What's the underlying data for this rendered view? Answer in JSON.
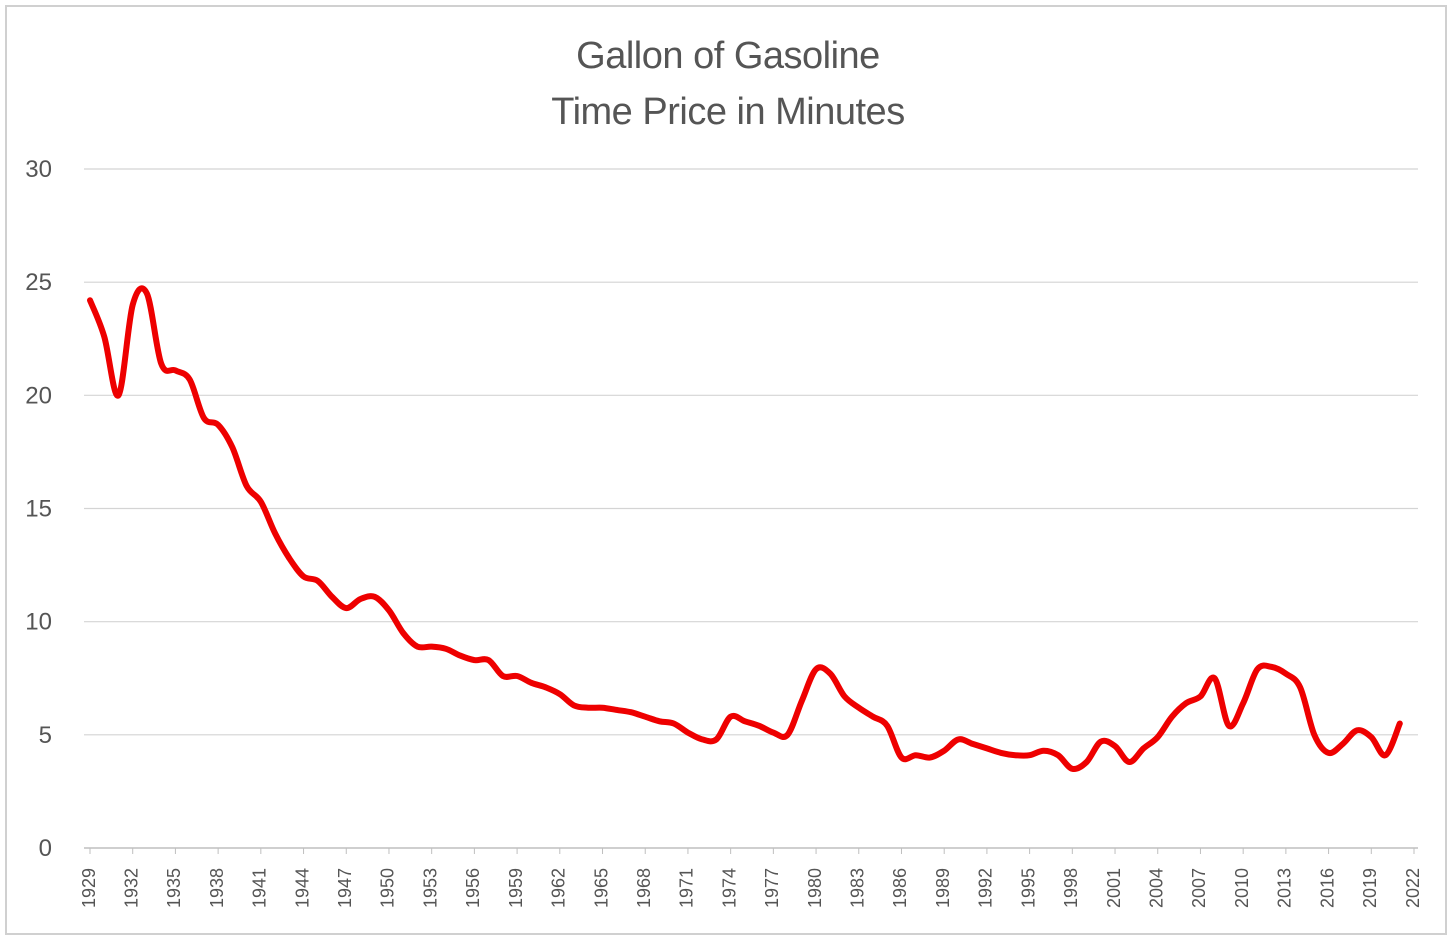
{
  "chart_data": {
    "type": "line",
    "title": "Gallon of Gasoline",
    "subtitle": "Time Price in Minutes",
    "xlabel": "",
    "ylabel": "",
    "ylim": [
      0,
      30
    ],
    "xlim": [
      1929,
      2022
    ],
    "yticks": [
      "0",
      "5",
      "10",
      "15",
      "20",
      "25",
      "30"
    ],
    "xticks": [
      "1929",
      "1932",
      "1935",
      "1938",
      "1941",
      "1944",
      "1947",
      "1950",
      "1953",
      "1956",
      "1959",
      "1962",
      "1965",
      "1968",
      "1971",
      "1974",
      "1977",
      "1980",
      "1983",
      "1986",
      "1989",
      "1992",
      "1995",
      "1998",
      "2001",
      "2004",
      "2007",
      "2010",
      "2013",
      "2016",
      "2019",
      "2022"
    ],
    "grid": "horizontal",
    "legend": "none",
    "series": [
      {
        "color": "#ee0000",
        "x": [
          1929,
          1930,
          1931,
          1932,
          1933,
          1934,
          1935,
          1936,
          1937,
          1938,
          1939,
          1940,
          1941,
          1942,
          1943,
          1944,
          1945,
          1946,
          1947,
          1948,
          1949,
          1950,
          1951,
          1952,
          1953,
          1954,
          1955,
          1956,
          1957,
          1958,
          1959,
          1960,
          1961,
          1962,
          1963,
          1964,
          1965,
          1966,
          1967,
          1968,
          1969,
          1970,
          1971,
          1972,
          1973,
          1974,
          1975,
          1976,
          1977,
          1978,
          1979,
          1980,
          1981,
          1982,
          1983,
          1984,
          1985,
          1986,
          1987,
          1988,
          1989,
          1990,
          1991,
          1992,
          1993,
          1994,
          1995,
          1996,
          1997,
          1998,
          1999,
          2000,
          2001,
          2002,
          2003,
          2004,
          2005,
          2006,
          2007,
          2008,
          2009,
          2010,
          2011,
          2012,
          2013,
          2014,
          2015,
          2016,
          2017,
          2018,
          2019,
          2020,
          2021
        ],
        "y": [
          24.2,
          22.6,
          20.0,
          24.0,
          24.5,
          21.4,
          21.1,
          20.7,
          19.0,
          18.7,
          17.7,
          16.0,
          15.3,
          13.9,
          12.8,
          12.0,
          11.8,
          11.1,
          10.6,
          11.0,
          11.1,
          10.5,
          9.5,
          8.9,
          8.9,
          8.8,
          8.5,
          8.3,
          8.3,
          7.6,
          7.6,
          7.3,
          7.1,
          6.8,
          6.3,
          6.2,
          6.2,
          6.1,
          6.0,
          5.8,
          5.6,
          5.5,
          5.1,
          4.8,
          4.8,
          5.8,
          5.6,
          5.4,
          5.1,
          5.0,
          6.5,
          7.9,
          7.7,
          6.7,
          6.2,
          5.8,
          5.4,
          4.0,
          4.1,
          4.0,
          4.3,
          4.8,
          4.6,
          4.4,
          4.2,
          4.1,
          4.1,
          4.3,
          4.1,
          3.5,
          3.8,
          4.7,
          4.5,
          3.8,
          4.4,
          4.9,
          5.8,
          6.4,
          6.7,
          7.5,
          5.4,
          6.4,
          7.9,
          8.0,
          7.7,
          7.1,
          5.0,
          4.2,
          4.6,
          5.2,
          4.9,
          4.1,
          5.5
        ]
      }
    ]
  }
}
